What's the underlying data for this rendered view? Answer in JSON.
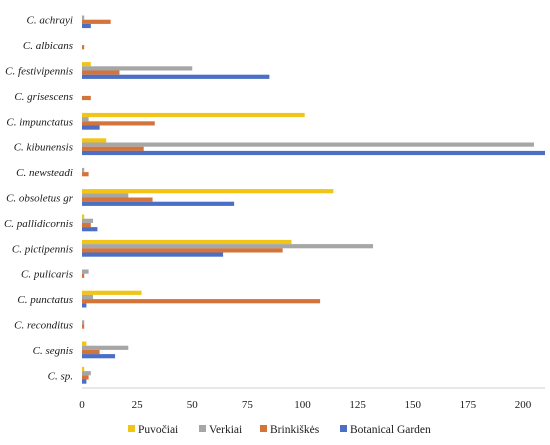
{
  "chart_data": {
    "type": "bar",
    "orientation": "horizontal",
    "categories": [
      "C. achrayi",
      "C. albicans",
      "C. festivipennis",
      "C. grisescens",
      "C. impunctatus",
      "C. kibunensis",
      "C. newsteadi",
      "C. obsoletus gr",
      "C. pallidicornis",
      "C. pictipennis",
      "C. pulicaris",
      "C. punctatus",
      "C. reconditus",
      "C. segnis",
      "C. sp."
    ],
    "series": [
      {
        "name": "Puvočiai",
        "color": "#f2c416",
        "values": [
          0,
          0,
          4,
          0,
          101,
          11,
          0,
          114,
          1,
          95,
          0,
          27,
          0,
          2,
          1
        ]
      },
      {
        "name": "Verkiai",
        "color": "#a6a6a6",
        "values": [
          1,
          0,
          50,
          0,
          3,
          205,
          1,
          21,
          5,
          132,
          3,
          5,
          1,
          21,
          4
        ]
      },
      {
        "name": "Brinkiškės",
        "color": "#d4733a",
        "values": [
          13,
          1,
          17,
          4,
          33,
          28,
          3,
          32,
          4,
          91,
          1,
          108,
          1,
          8,
          3
        ]
      },
      {
        "name": "Botanical Garden",
        "color": "#4a6fc4",
        "values": [
          4,
          0,
          85,
          0,
          8,
          210,
          0,
          69,
          7,
          64,
          0,
          2,
          0,
          15,
          2
        ]
      }
    ],
    "xlim": [
      0,
      210
    ],
    "xticks": [
      0,
      25,
      50,
      75,
      100,
      125,
      150,
      175,
      200
    ],
    "grid": false,
    "legend_position": "bottom"
  }
}
